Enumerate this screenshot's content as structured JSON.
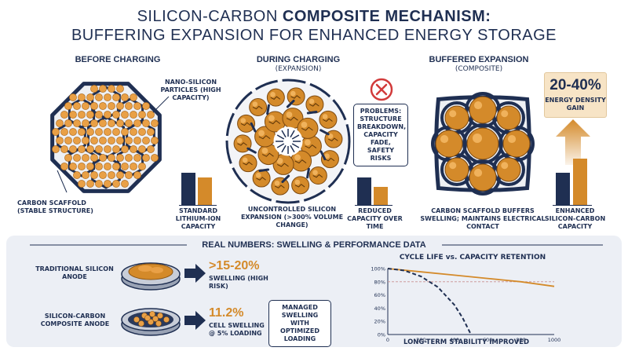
{
  "title": {
    "line1_a": "SILICON-CARBON ",
    "line1_b": "COMPOSITE MECHANISM:",
    "line2": "BUFFERING EXPANSION FOR ENHANCED ENERGY STORAGE"
  },
  "panels": {
    "before": {
      "heading": "BEFORE CHARGING",
      "particles_label": "NANO-SILICON PARTICLES (HIGH CAPACITY)",
      "scaffold_label": "CARBON SCAFFOLD (STABLE STRUCTURE)",
      "bar_label": "STANDARD LITHIUM-ION CAPACITY"
    },
    "during": {
      "heading": "DURING CHARGING",
      "subheading": "(EXPANSION)",
      "expansion_label": "UNCONTROLLED SILICON EXPANSION (>300% VOLUME CHANGE)",
      "problems": "PROBLEMS: STRUCTURE BREAKDOWN, CAPACITY FADE, SAFETY RISKS",
      "bar_label": "REDUCED CAPACITY OVER TIME"
    },
    "buffered": {
      "heading": "BUFFERED EXPANSION",
      "subheading": "(COMPOSITE)",
      "buffer_label": "CARBON SCAFFOLD BUFFERS SWELLING; MAINTAINS ELECTRICAL CONTACT",
      "gain_value": "20-40%",
      "gain_label": "ENERGY DENSITY GAIN",
      "bar_label": "ENHANCED SILICON-CARBON CAPACITY"
    }
  },
  "real_numbers": {
    "heading": "REAL NUMBERS: SWELLING & PERFORMANCE DATA",
    "traditional": {
      "label": "TRADITIONAL SILICON ANODE",
      "value": ">15-20%",
      "desc": "SWELLING (HIGH RISK)"
    },
    "composite": {
      "label": "SILICON-CARBON COMPOSITE ANODE",
      "value": "11.2%",
      "desc": "CELL SWELLING @ 5% LOADING",
      "callout": "MANAGED SWELLING WITH OPTIMIZED LOADING"
    }
  },
  "chart_data": {
    "type": "line",
    "title": "CYCLE LIFE vs. CAPACITY RETENTION",
    "xlabel": "LONG-TERM STABILITY IMPROVED",
    "ylabel": "",
    "xlim": [
      0,
      1000
    ],
    "ylim": [
      0,
      100
    ],
    "x_ticks": [
      "0",
      "200",
      "400",
      "600",
      "800",
      "1000"
    ],
    "y_ticks": [
      "0%",
      "20%",
      "40%",
      "60%",
      "80%",
      "100%"
    ],
    "reference_line": 80,
    "series": [
      {
        "style": "solid",
        "color": "#d48a2a",
        "x": [
          0,
          200,
          400,
          600,
          800,
          1000
        ],
        "y": [
          100,
          95,
          90,
          85,
          80,
          73
        ]
      },
      {
        "style": "dashed",
        "color": "#1f2f52",
        "x": [
          0,
          100,
          200,
          300,
          400,
          450,
          500
        ],
        "y": [
          100,
          97,
          88,
          72,
          45,
          25,
          0
        ]
      }
    ]
  },
  "colors": {
    "navy": "#1f2f52",
    "orange": "#d48a2a",
    "orange_light": "#e9a046",
    "panel_bg": "#eceff5",
    "problem_red": "#d23b3b"
  },
  "icons": [
    "warning-x-icon",
    "arrow-right-icon",
    "arrow-up-icon"
  ]
}
